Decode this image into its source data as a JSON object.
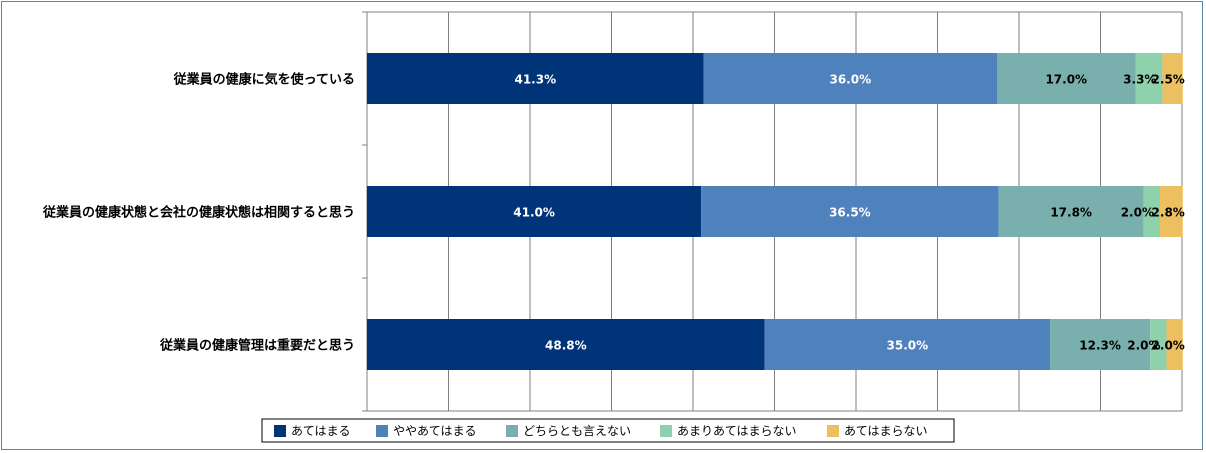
{
  "chart_data": {
    "type": "bar",
    "orientation": "horizontal",
    "stacked": true,
    "percent_axis": true,
    "xlim": [
      0,
      100
    ],
    "grid": "vertical",
    "legend_position": "bottom",
    "categories": [
      "従業員の健康に気を使っている",
      "従業員の健康状態と会社の健康状態は相関すると思う",
      "従業員の健康管理は重要だと思う"
    ],
    "series": [
      {
        "name": "あてはまる",
        "color": "#003479",
        "label_color": "#ffffff",
        "values": [
          41.3,
          41.0,
          48.8
        ],
        "labels": [
          "41.3%",
          "41.0%",
          "48.8%"
        ]
      },
      {
        "name": "ややあてはまる",
        "color": "#4f81bd",
        "label_color": "#ffffff",
        "values": [
          36.0,
          36.5,
          35.0
        ],
        "labels": [
          "36.0%",
          "36.5%",
          "35.0%"
        ]
      },
      {
        "name": "どちらとも言えない",
        "color": "#79afac",
        "label_color": "#000000",
        "values": [
          17.0,
          17.8,
          12.3
        ],
        "labels": [
          "17.0%",
          "17.8%",
          "12.3%"
        ]
      },
      {
        "name": "あまりあてはまらない",
        "color": "#8fd1ac",
        "label_color": "#000000",
        "values": [
          3.3,
          2.0,
          2.0
        ],
        "labels": [
          "3.3%",
          "2.0%",
          "2.0%"
        ]
      },
      {
        "name": "あてはまらない",
        "color": "#ecc060",
        "label_color": "#000000",
        "values": [
          2.5,
          2.8,
          2.0
        ],
        "labels": [
          "2.5%",
          "2.8%",
          "2.0%"
        ]
      }
    ]
  }
}
